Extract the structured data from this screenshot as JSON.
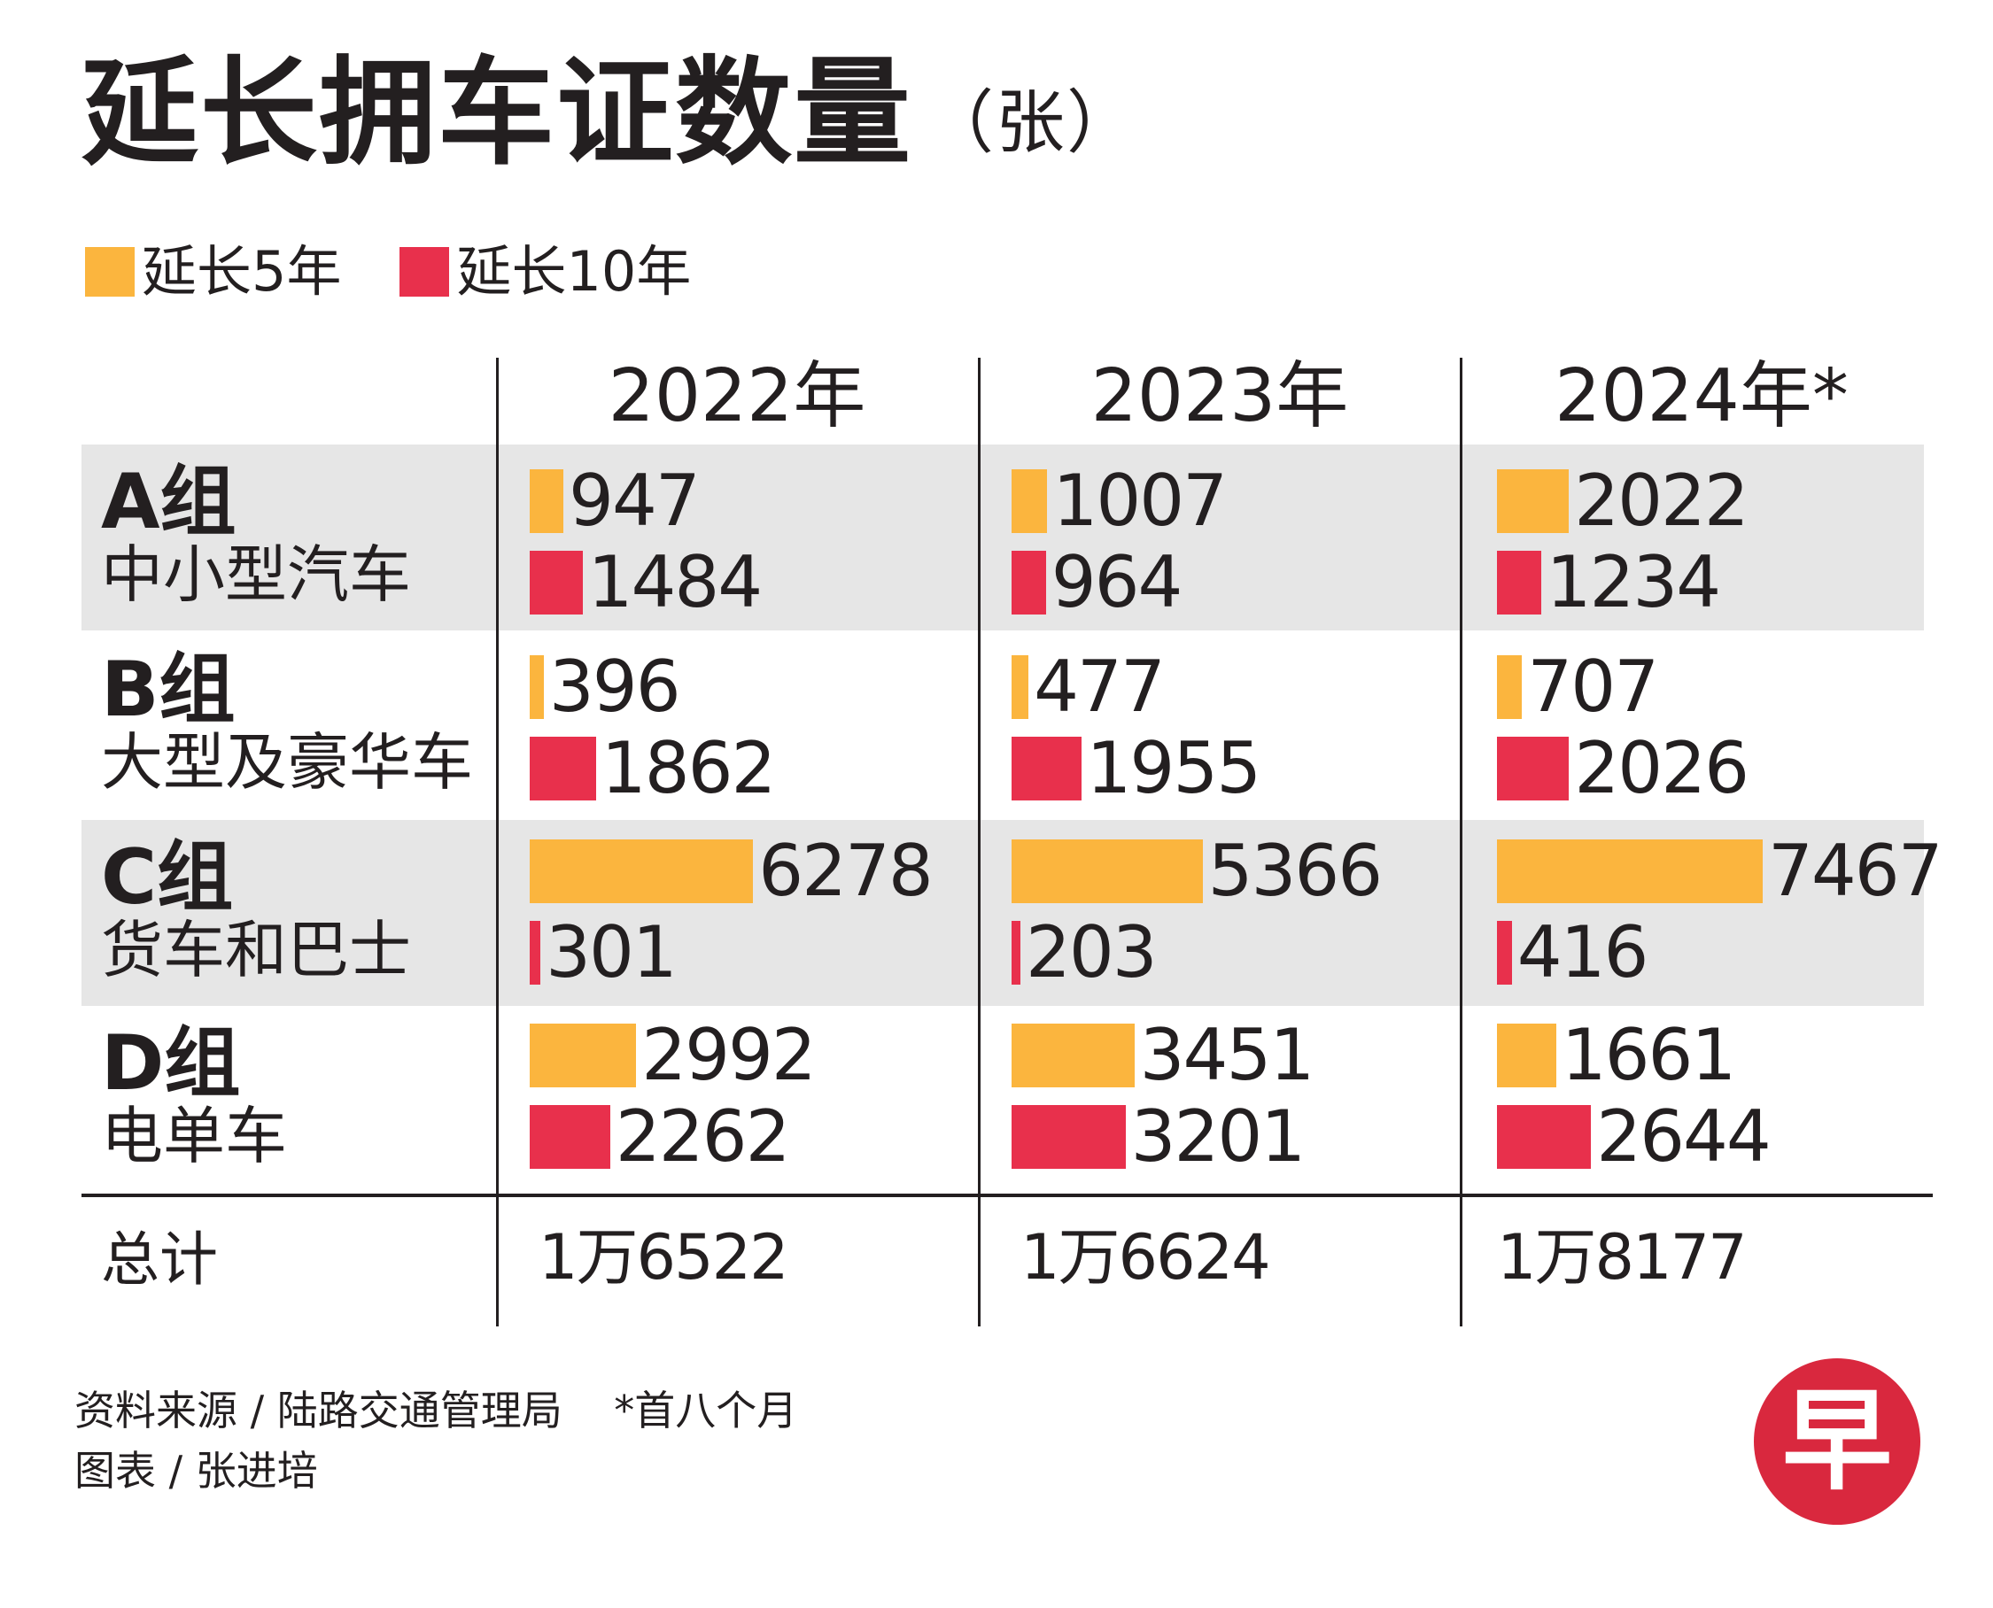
{
  "title": "延长拥车证数量",
  "title_unit": "（张）",
  "colors": {
    "five_year": "#fbb53e",
    "ten_year": "#e8304c",
    "band": "#e6e6e6",
    "logo": "#d9283e"
  },
  "chart_data": {
    "type": "bar",
    "orientation": "horizontal",
    "title": "延长拥车证数量（张）",
    "legend": [
      "延长5年",
      "延长10年"
    ],
    "legend_placement": "top-left",
    "years": [
      "2022年",
      "2023年",
      "2024年*"
    ],
    "groups": [
      {
        "code": "A组",
        "desc": "中小型汽车"
      },
      {
        "code": "B组",
        "desc": "大型及豪华车"
      },
      {
        "code": "C组",
        "desc": "货车和巴士"
      },
      {
        "code": "D组",
        "desc": "电单车"
      }
    ],
    "series": [
      {
        "name": "延长5年",
        "values": [
          [
            947,
            1007,
            2022
          ],
          [
            396,
            477,
            707
          ],
          [
            6278,
            5366,
            7467
          ],
          [
            2992,
            3451,
            1661
          ]
        ]
      },
      {
        "name": "延长10年",
        "values": [
          [
            1484,
            964,
            1234
          ],
          [
            1862,
            1955,
            2026
          ],
          [
            301,
            203,
            416
          ],
          [
            2262,
            3201,
            2644
          ]
        ]
      }
    ],
    "xlim": [
      0,
      7467
    ],
    "totals": {
      "label": "总计",
      "values": [
        "1万6522",
        "1万6624",
        "1万8177"
      ]
    }
  },
  "footer": {
    "source": "资料来源 / 陆路交通管理局    *首八个月",
    "credit": "图表 / 张进培"
  },
  "logo": {
    "glyph": "早"
  }
}
